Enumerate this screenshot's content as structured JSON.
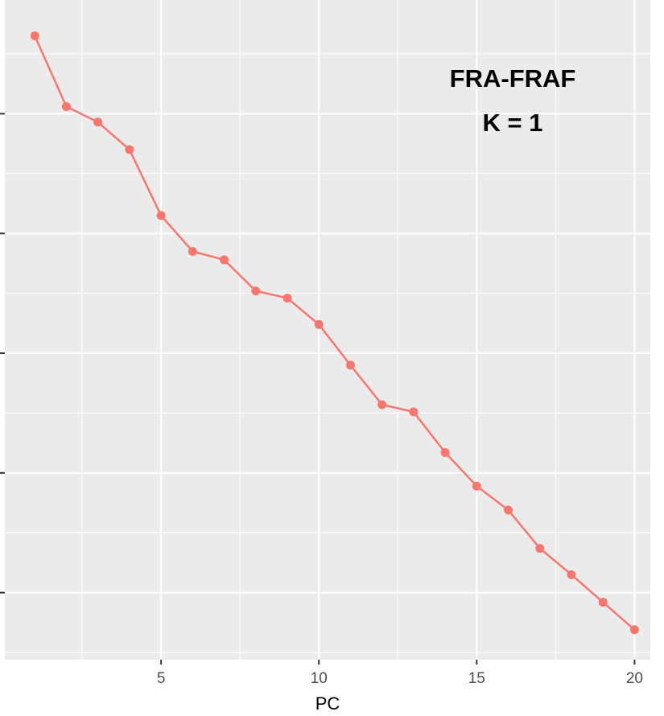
{
  "chart_data": {
    "type": "line",
    "annotations": [
      "FRA-FRAF",
      "K = 1"
    ],
    "x_label": "PC",
    "x": [
      1,
      2,
      3,
      4,
      5,
      6,
      7,
      8,
      9,
      10,
      11,
      12,
      13,
      14,
      15,
      16,
      17,
      18,
      19,
      20
    ],
    "series": [
      {
        "color": "#f8766d",
        "values": [
          5.65,
          5.06,
          4.93,
          4.7,
          4.15,
          3.85,
          3.78,
          3.52,
          3.46,
          3.24,
          2.9,
          2.57,
          2.51,
          2.17,
          1.89,
          1.69,
          1.37,
          1.15,
          0.92,
          0.69
        ]
      }
    ],
    "xlim": [
      0.05,
      20.5
    ],
    "xticks": [
      5,
      10,
      15,
      20
    ],
    "ylim": [
      0.44,
      5.95
    ],
    "yticks": [
      1,
      2,
      3,
      4,
      5
    ],
    "grid": true
  }
}
